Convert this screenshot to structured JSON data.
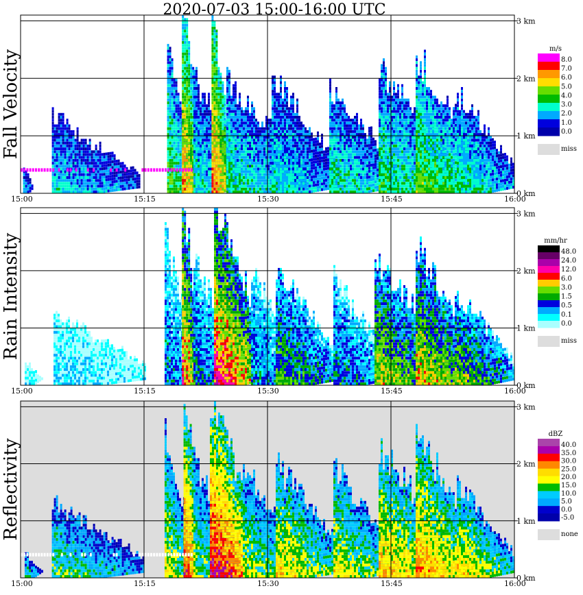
{
  "title": "2020-07-03   15:00-16:00 UTC",
  "time_ticks": [
    "15:00",
    "15:15",
    "15:30",
    "15:45",
    "16:00"
  ],
  "height_ticks": [
    "0 km",
    "1 km",
    "2 km",
    "3 km"
  ],
  "chart_data": [
    {
      "type": "heatmap",
      "title": "Fall Velocity",
      "ylabel": "Fall Velocity",
      "xlabel": "",
      "xlim": [
        0,
        60
      ],
      "ylim": [
        0,
        3.1
      ],
      "background": "#ffffff",
      "fill_marker": "#ff00ff",
      "legend": {
        "unit": "m/s",
        "labels": [
          "8.0",
          "7.0",
          "6.0",
          "5.0",
          "4.0",
          "3.0",
          "2.0",
          "1.0",
          "0.0"
        ],
        "colors": [
          "#ff00ff",
          "#ff0000",
          "#ff9900",
          "#ffdd00",
          "#66dd00",
          "#00bb00",
          "#00ffcc",
          "#00aaff",
          "#0000dd",
          "#0000aa"
        ],
        "miss_label": "miss",
        "miss_color": "#dddddd"
      },
      "bands": [
        {
          "t0": 0.3,
          "t1": 1.5,
          "top": 0.4,
          "peak": 0.3
        },
        {
          "t0": 3.8,
          "t1": 14.5,
          "top": 1.3,
          "peak": 0.35
        },
        {
          "t0": 17.8,
          "t1": 20.8,
          "top": 2.4,
          "peak": 0.55
        },
        {
          "t0": 19.6,
          "t1": 22.0,
          "top": 3.15,
          "peak": 0.85
        },
        {
          "t0": 21.0,
          "t1": 26.5,
          "top": 2.0,
          "peak": 0.4
        },
        {
          "t0": 23.2,
          "t1": 25.6,
          "top": 3.1,
          "peak": 0.9
        },
        {
          "t0": 25.0,
          "t1": 34.5,
          "top": 1.9,
          "peak": 0.45
        },
        {
          "t0": 30.5,
          "t1": 38.5,
          "top": 2.0,
          "peak": 0.4
        },
        {
          "t0": 37.5,
          "t1": 45.5,
          "top": 1.9,
          "peak": 0.45
        },
        {
          "t0": 43.5,
          "t1": 52.5,
          "top": 2.2,
          "peak": 0.5
        },
        {
          "t0": 48.0,
          "t1": 56.0,
          "top": 2.4,
          "peak": 0.6
        },
        {
          "t0": 53.0,
          "t1": 60.0,
          "top": 1.7,
          "peak": 0.45
        }
      ]
    },
    {
      "type": "heatmap",
      "title": "Rain Intensity",
      "ylabel": "Rain Intensity",
      "xlabel": "",
      "xlim": [
        0,
        60
      ],
      "ylim": [
        0,
        3.1
      ],
      "background": "#ffffff",
      "legend": {
        "unit": "mm/hr",
        "labels": [
          "48.0",
          "24.0",
          "12.0",
          "6.0",
          "3.0",
          "1.5",
          "0.5",
          "0.1",
          "0.0"
        ],
        "colors": [
          "#000000",
          "#660066",
          "#aa00aa",
          "#ff00aa",
          "#ff0000",
          "#ffcc00",
          "#66dd00",
          "#00aa00",
          "#0000dd",
          "#00aaff",
          "#00ffff",
          "#aaffff"
        ],
        "miss_label": "miss",
        "miss_color": "#dddddd"
      },
      "bands": [
        {
          "t0": 0.5,
          "t1": 2.5,
          "top": 0.4,
          "peak": 0.1
        },
        {
          "t0": 4.0,
          "t1": 15.0,
          "top": 1.3,
          "peak": 0.15
        },
        {
          "t0": 17.5,
          "t1": 21.5,
          "top": 2.5,
          "peak": 0.3
        },
        {
          "t0": 19.6,
          "t1": 22.0,
          "top": 3.15,
          "peak": 0.7
        },
        {
          "t0": 21.0,
          "t1": 27.0,
          "top": 2.1,
          "peak": 0.35
        },
        {
          "t0": 23.5,
          "t1": 30.0,
          "top": 3.1,
          "peak": 0.75
        },
        {
          "t0": 28.0,
          "t1": 35.0,
          "top": 1.9,
          "peak": 0.3
        },
        {
          "t0": 31.0,
          "t1": 39.0,
          "top": 2.0,
          "peak": 0.45
        },
        {
          "t0": 38.0,
          "t1": 45.0,
          "top": 1.8,
          "peak": 0.35
        },
        {
          "t0": 43.0,
          "t1": 52.0,
          "top": 2.2,
          "peak": 0.55
        },
        {
          "t0": 48.0,
          "t1": 56.0,
          "top": 2.4,
          "peak": 0.6
        },
        {
          "t0": 53.0,
          "t1": 60.0,
          "top": 1.6,
          "peak": 0.5
        }
      ]
    },
    {
      "type": "heatmap",
      "title": "Reflectivity",
      "ylabel": "Reflectivity",
      "xlabel": "",
      "xlim": [
        0,
        60
      ],
      "ylim": [
        0,
        3.1
      ],
      "background": "#dddddd",
      "fill_marker": "#ffffff",
      "legend": {
        "unit": "dBZ",
        "labels": [
          "40.0",
          "35.0",
          "30.0",
          "25.0",
          "20.0",
          "15.0",
          "10.0",
          "5.0",
          "0.0",
          "-5.0"
        ],
        "colors": [
          "#aa44aa",
          "#aa00aa",
          "#ff0000",
          "#ff8800",
          "#ffdd00",
          "#ffff00",
          "#00bb00",
          "#00ccff",
          "#00aaff",
          "#0000cc",
          "#0000aa"
        ],
        "miss_label": "none",
        "miss_color": "#dddddd"
      },
      "bands": [
        {
          "t0": 0.5,
          "t1": 2.5,
          "top": 0.4,
          "peak": 0.4
        },
        {
          "t0": 3.8,
          "t1": 15.0,
          "top": 1.3,
          "peak": 0.45
        },
        {
          "t0": 17.5,
          "t1": 21.0,
          "top": 2.4,
          "peak": 0.6
        },
        {
          "t0": 19.8,
          "t1": 22.0,
          "top": 3.15,
          "peak": 0.85
        },
        {
          "t0": 21.0,
          "t1": 26.5,
          "top": 2.0,
          "peak": 0.5
        },
        {
          "t0": 23.0,
          "t1": 29.0,
          "top": 3.1,
          "peak": 0.95
        },
        {
          "t0": 27.0,
          "t1": 34.0,
          "top": 1.9,
          "peak": 0.55
        },
        {
          "t0": 31.0,
          "t1": 39.0,
          "top": 2.0,
          "peak": 0.65
        },
        {
          "t0": 38.0,
          "t1": 45.5,
          "top": 1.9,
          "peak": 0.6
        },
        {
          "t0": 43.5,
          "t1": 52.0,
          "top": 2.3,
          "peak": 0.7
        },
        {
          "t0": 48.0,
          "t1": 56.0,
          "top": 2.45,
          "peak": 0.75
        },
        {
          "t0": 53.0,
          "t1": 60.0,
          "top": 1.6,
          "peak": 0.65
        }
      ]
    }
  ]
}
